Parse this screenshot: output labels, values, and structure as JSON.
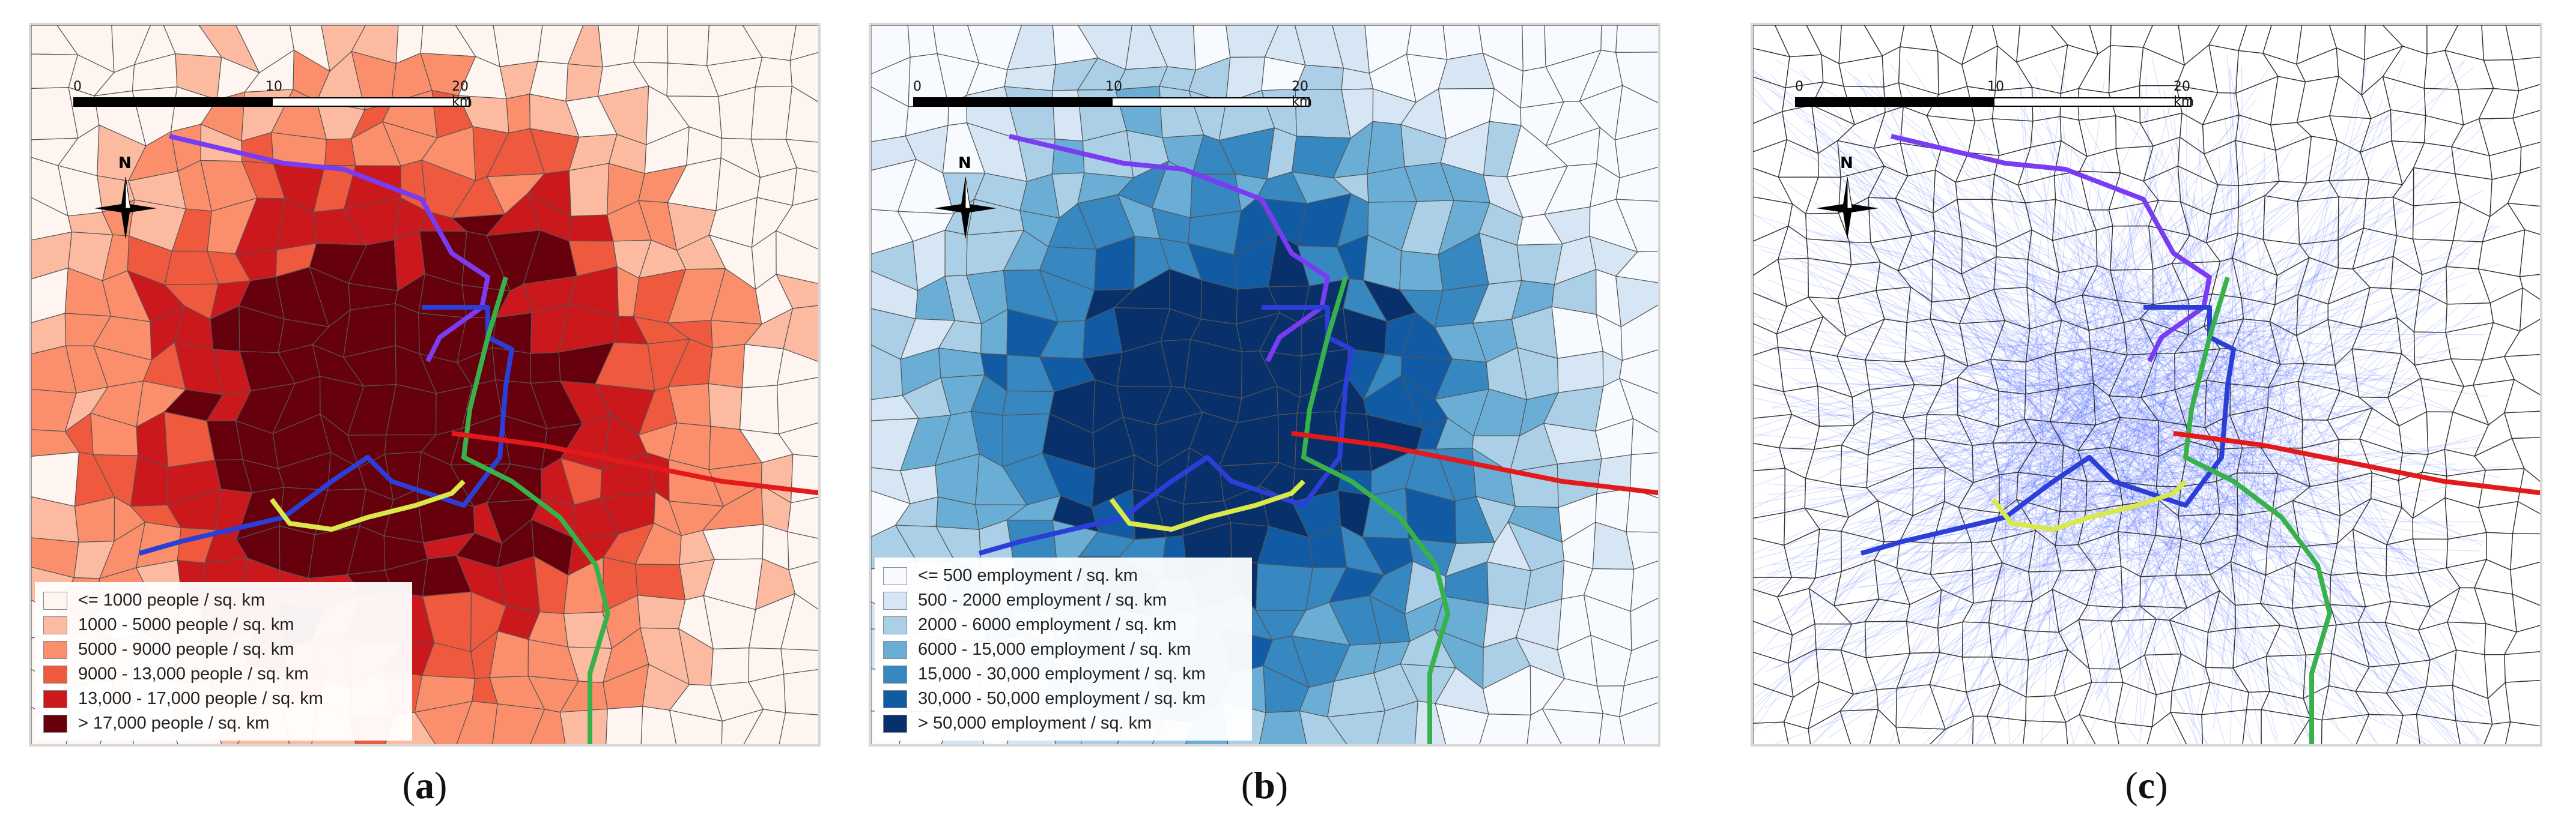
{
  "scale": {
    "ticks": [
      "0",
      "10",
      "20 km"
    ]
  },
  "north_label": "N",
  "colors": {
    "line_purple": "#7a3cf2",
    "line_blue": "#2b3fd8",
    "line_green": "#37b24a",
    "line_red": "#e31a1c",
    "line_yellow": "#d9e84a"
  },
  "panels": [
    {
      "id": "a",
      "caption": "a",
      "legend": [
        {
          "label": "<= 1000 people / sq. km",
          "color": "#fff5f0"
        },
        {
          "label": "1000 - 5000 people / sq. km",
          "color": "#fcbba1"
        },
        {
          "label": "5000 - 9000 people / sq. km",
          "color": "#fb8f6c"
        },
        {
          "label": "9000 - 13,000 people / sq. km",
          "color": "#ef5a3e"
        },
        {
          "label": "13,000 - 17,000 people / sq. km",
          "color": "#cb181d"
        },
        {
          "label": "> 17,000 people / sq. km",
          "color": "#67000d"
        }
      ]
    },
    {
      "id": "b",
      "caption": "b",
      "legend": [
        {
          "label": "<= 500 employment / sq. km",
          "color": "#f7fbff"
        },
        {
          "label": "500 - 2000 employment / sq. km",
          "color": "#d6e6f4"
        },
        {
          "label": "2000 - 6000 employment / sq. km",
          "color": "#abcfe6"
        },
        {
          "label": "6000 - 15,000 employment / sq. km",
          "color": "#6aaed6"
        },
        {
          "label": "15,000 - 30,000 employment / sq. km",
          "color": "#3787c0"
        },
        {
          "label": "30,000 - 50,000 employment / sq. km",
          "color": "#105ba4"
        },
        {
          "label": "> 50,000 employment / sq. km",
          "color": "#08306b"
        }
      ]
    },
    {
      "id": "c",
      "caption": "c",
      "legend": []
    }
  ]
}
